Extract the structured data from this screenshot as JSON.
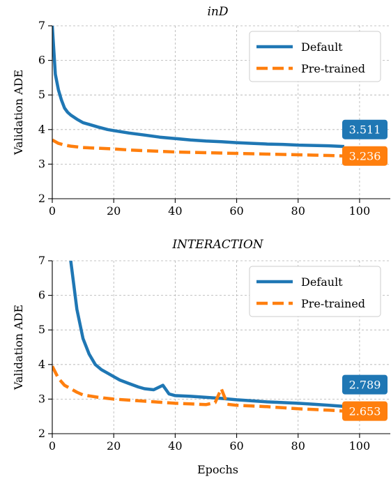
{
  "chart_data": [
    {
      "type": "line",
      "title": "inD",
      "ylabel": "Validation ADE",
      "xlabel": "",
      "xlim": [
        0,
        110
      ],
      "ylim": [
        2,
        7
      ],
      "xticks": [
        0,
        20,
        40,
        60,
        80,
        100
      ],
      "yticks": [
        2,
        3,
        4,
        5,
        6,
        7
      ],
      "grid": true,
      "legend_position": "top-right",
      "series": [
        {
          "name": "Default",
          "color": "#1f77b4",
          "style": "solid",
          "x": [
            0,
            1,
            2,
            3,
            4,
            5,
            6,
            8,
            10,
            12,
            15,
            18,
            20,
            25,
            30,
            35,
            40,
            45,
            50,
            55,
            60,
            65,
            70,
            75,
            80,
            85,
            90,
            95
          ],
          "y": [
            7.0,
            5.6,
            5.15,
            4.85,
            4.62,
            4.5,
            4.42,
            4.3,
            4.2,
            4.15,
            4.07,
            4.0,
            3.97,
            3.9,
            3.84,
            3.78,
            3.74,
            3.7,
            3.67,
            3.65,
            3.62,
            3.6,
            3.58,
            3.57,
            3.55,
            3.54,
            3.53,
            3.511
          ],
          "end_label": "3.511"
        },
        {
          "name": "Pre-trained",
          "color": "#ff7f0e",
          "style": "dashed",
          "x": [
            0,
            2,
            4,
            6,
            8,
            10,
            15,
            20,
            25,
            30,
            35,
            40,
            45,
            50,
            55,
            60,
            65,
            70,
            75,
            80,
            85,
            90,
            95
          ],
          "y": [
            3.7,
            3.6,
            3.55,
            3.52,
            3.5,
            3.48,
            3.46,
            3.44,
            3.41,
            3.39,
            3.37,
            3.35,
            3.34,
            3.33,
            3.32,
            3.31,
            3.3,
            3.29,
            3.28,
            3.27,
            3.26,
            3.25,
            3.236
          ],
          "end_label": "3.236"
        }
      ]
    },
    {
      "type": "line",
      "title": "INTERACTION",
      "ylabel": "Validation ADE",
      "xlabel": "Epochs",
      "xlim": [
        0,
        110
      ],
      "ylim": [
        2,
        7
      ],
      "xticks": [
        0,
        20,
        40,
        60,
        80,
        100
      ],
      "yticks": [
        2,
        3,
        4,
        5,
        6,
        7
      ],
      "grid": true,
      "legend_position": "top-right",
      "series": [
        {
          "name": "Default",
          "color": "#1f77b4",
          "style": "solid",
          "x": [
            6,
            8,
            10,
            12,
            14,
            16,
            18,
            20,
            22,
            25,
            28,
            30,
            33,
            36,
            38,
            40,
            45,
            50,
            55,
            60,
            65,
            70,
            75,
            80,
            85,
            90,
            95
          ],
          "y": [
            7.0,
            5.6,
            4.75,
            4.3,
            4.0,
            3.85,
            3.75,
            3.65,
            3.55,
            3.45,
            3.35,
            3.3,
            3.27,
            3.4,
            3.15,
            3.1,
            3.08,
            3.05,
            3.02,
            2.98,
            2.95,
            2.92,
            2.9,
            2.88,
            2.85,
            2.82,
            2.789
          ],
          "end_label": "2.789"
        },
        {
          "name": "Pre-trained",
          "color": "#ff7f0e",
          "style": "dashed",
          "x": [
            0,
            2,
            4,
            6,
            8,
            10,
            15,
            20,
            25,
            30,
            35,
            40,
            45,
            50,
            53,
            55,
            57,
            60,
            65,
            70,
            75,
            80,
            85,
            90,
            95
          ],
          "y": [
            3.95,
            3.6,
            3.4,
            3.3,
            3.2,
            3.12,
            3.05,
            3.0,
            2.97,
            2.94,
            2.91,
            2.88,
            2.86,
            2.84,
            2.9,
            3.3,
            2.85,
            2.82,
            2.8,
            2.78,
            2.75,
            2.72,
            2.7,
            2.68,
            2.653
          ],
          "end_label": "2.653"
        }
      ]
    }
  ],
  "colors": {
    "default": "#1f77b4",
    "pretrained": "#ff7f0e"
  }
}
